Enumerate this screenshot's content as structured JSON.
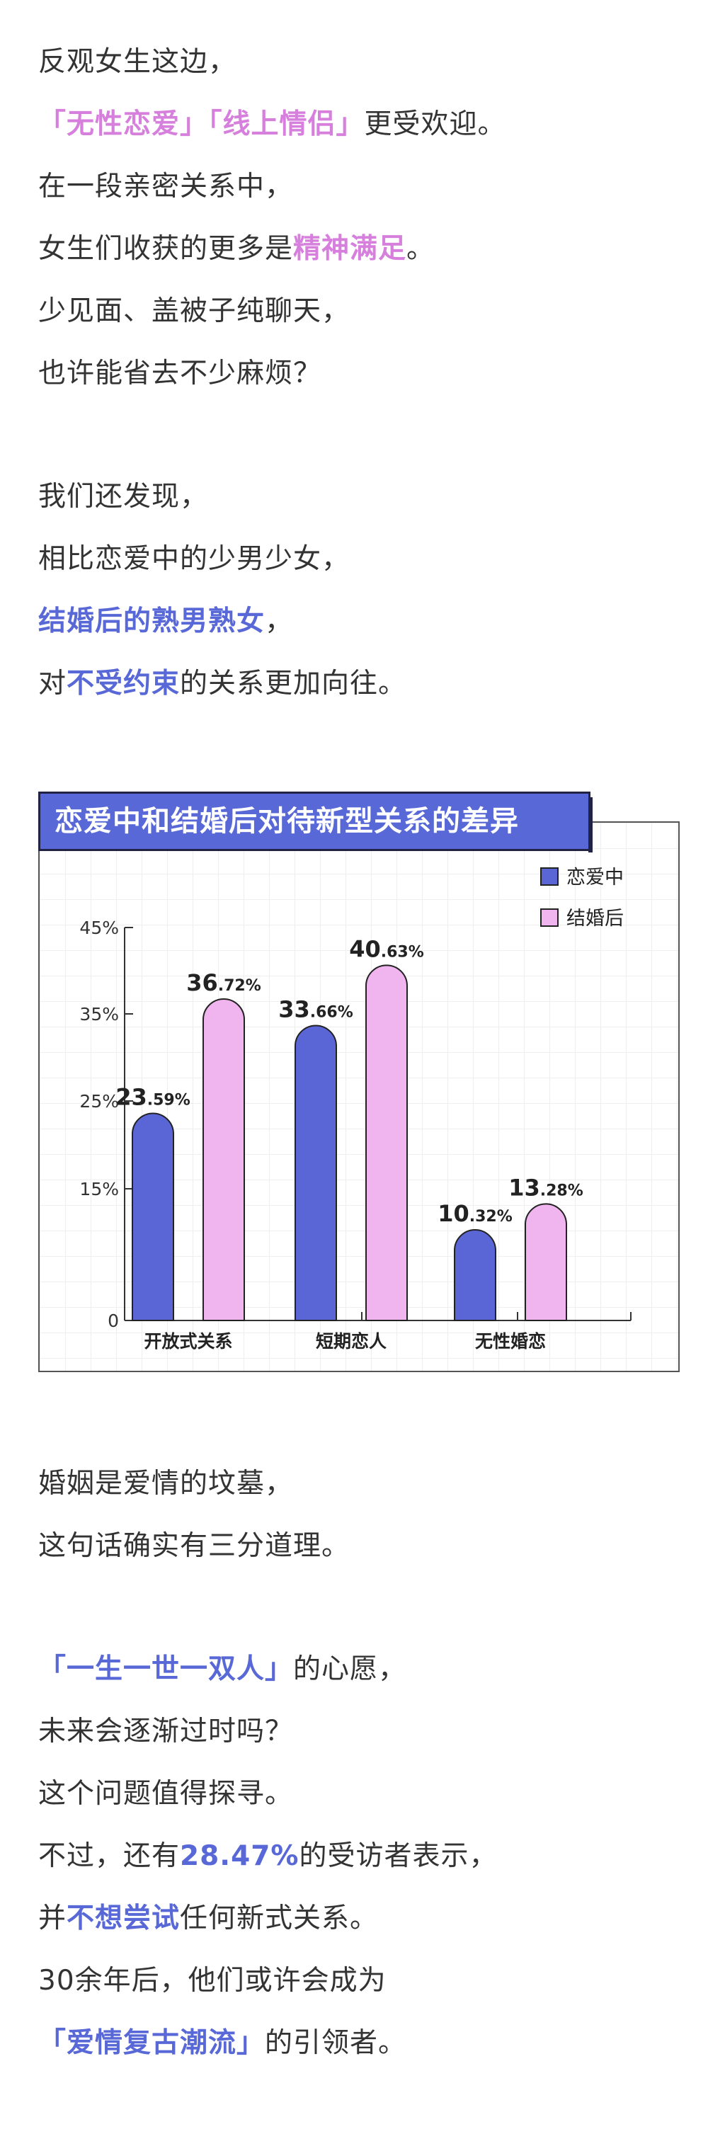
{
  "intro": {
    "l1": "反观女生这边，",
    "l2a": "「无性恋爱」「线上情侣」",
    "l2b": "更受欢迎。",
    "l3": "在一段亲密关系中，",
    "l4a": "女生们收获的更多是",
    "l4b": "精神满足",
    "l4c": "。",
    "l5": "少见面、盖被子纯聊天，",
    "l6": "也许能省去不少麻烦？"
  },
  "finding": {
    "l1": "我们还发现，",
    "l2": "相比恋爱中的少男少女，",
    "l3a": "结婚后的熟男熟女",
    "l3b": "，",
    "l4a": "对",
    "l4b": "不受约束",
    "l4c": "的关系更加向往。"
  },
  "chart_data": {
    "type": "bar",
    "title": "恋爱中和结婚后对待新型关系的差异",
    "categories": [
      "开放式关系",
      "短期恋人",
      "无性婚恋"
    ],
    "series": [
      {
        "name": "恋爱中",
        "color": "#5b66d6",
        "values": [
          23.59,
          33.66,
          10.32
        ]
      },
      {
        "name": "结婚后",
        "color": "#f0b4ee",
        "values": [
          36.72,
          40.63,
          13.28
        ]
      }
    ],
    "yticks": [
      "0",
      "15%",
      "25%",
      "35%",
      "45%"
    ],
    "ylim": [
      0,
      45
    ],
    "legend": "top-right",
    "grid": true
  },
  "outro": {
    "l1": "婚姻是爱情的坟墓，",
    "l2": "这句话确实有三分道理。",
    "l3a": "「一生一世一双人」",
    "l3b": "的心愿，",
    "l4": "未来会逐渐过时吗？",
    "l5": "这个问题值得探寻。",
    "l6a": "不过，还有",
    "l6b": "28.47%",
    "l6c": "的受访者表示，",
    "l7a": "并",
    "l7b": "不想尝试",
    "l7c": "任何新式关系。",
    "l8": "30余年后，他们或许会成为",
    "l9a": "「爱情复古潮流」",
    "l9b": "的引领者。"
  }
}
